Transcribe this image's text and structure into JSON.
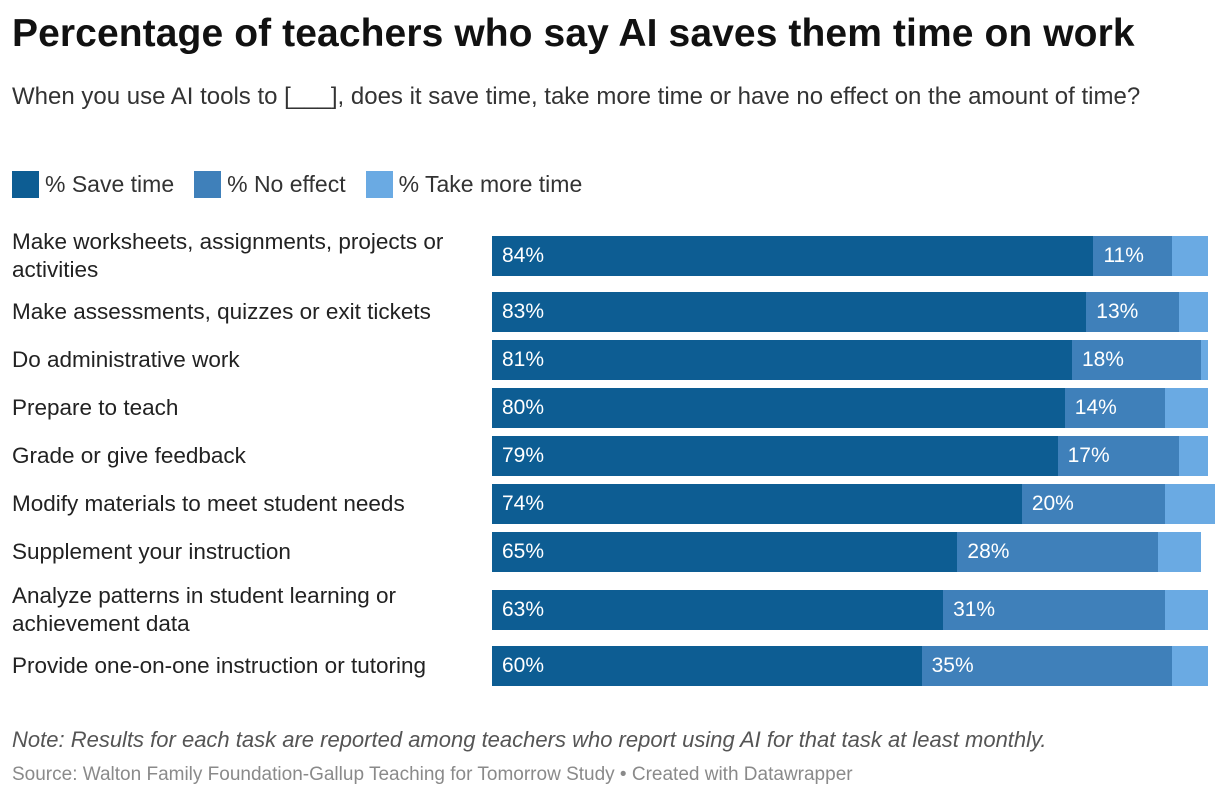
{
  "chart_data": {
    "type": "bar",
    "orientation": "horizontal",
    "stacked": true,
    "title": "Percentage of teachers who say AI saves them time on work",
    "subtitle": "When you use AI tools to [___], does it save time, take more time or have no effect on the amount of time?",
    "categories": [
      "Make worksheets, assignments, projects or activities",
      "Make assessments, quizzes or exit tickets",
      "Do administrative work",
      "Prepare to teach",
      "Grade or give feedback",
      "Modify materials to meet student needs",
      "Supplement your instruction",
      "Analyze patterns in student learning or achievement data",
      "Provide one-on-one instruction or tutoring"
    ],
    "series": [
      {
        "name": "% Save time",
        "color": "#0d5d93",
        "values": [
          84,
          83,
          81,
          80,
          79,
          74,
          65,
          63,
          60
        ],
        "labels": [
          "84%",
          "83%",
          "81%",
          "80%",
          "79%",
          "74%",
          "65%",
          "63%",
          "60%"
        ]
      },
      {
        "name": "% No effect",
        "color": "#3f80ba",
        "values": [
          11,
          13,
          18,
          14,
          17,
          20,
          28,
          31,
          35
        ],
        "labels": [
          "11%",
          "13%",
          "18%",
          "14%",
          "17%",
          "20%",
          "28%",
          "31%",
          "35%"
        ]
      },
      {
        "name": "% Take more time",
        "color": "#6aaae3",
        "values": [
          5,
          4,
          1,
          6,
          4,
          7,
          6,
          6,
          5
        ]
      }
    ],
    "xlim": [
      0,
      100
    ],
    "note": "Note: Results for each task are reported among teachers who report using AI for that task at least monthly.",
    "source": "Source: Walton Family Foundation-Gallup Teaching for Tomorrow Study • Created with Datawrapper"
  }
}
